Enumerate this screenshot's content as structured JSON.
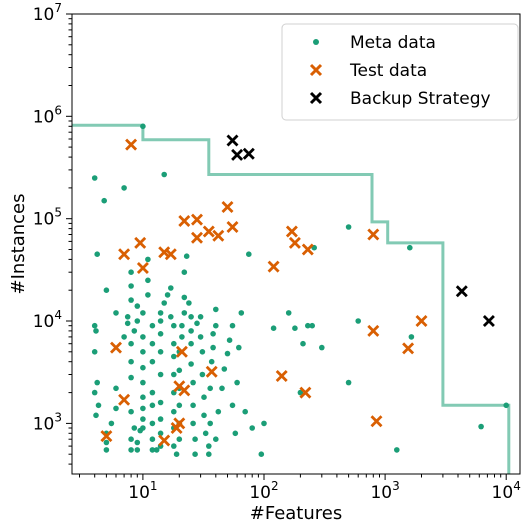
{
  "chart_data": {
    "type": "scatter",
    "xlabel": "#Features",
    "ylabel": "#Instances",
    "xscale": "log",
    "yscale": "log",
    "xlim": [
      2.6,
      13000
    ],
    "ylim": [
      320,
      10000000
    ],
    "x_ticks": [
      {
        "value": 10,
        "base": "10",
        "exp": "1"
      },
      {
        "value": 100,
        "base": "10",
        "exp": "2"
      },
      {
        "value": 1000,
        "base": "10",
        "exp": "3"
      },
      {
        "value": 10000,
        "base": "10",
        "exp": "4"
      }
    ],
    "y_ticks": [
      {
        "value": 1000,
        "base": "10",
        "exp": "3"
      },
      {
        "value": 10000,
        "base": "10",
        "exp": "4"
      },
      {
        "value": 100000,
        "base": "10",
        "exp": "5"
      },
      {
        "value": 1000000,
        "base": "10",
        "exp": "6"
      },
      {
        "value": 10000000,
        "base": "10",
        "exp": "7"
      }
    ],
    "grid": false,
    "legend_position": "top-right",
    "colors": {
      "meta": "#1b9e77",
      "test": "#d95f02",
      "backup": "#000000",
      "frontier": "#1b9e77"
    },
    "frontier": [
      [
        2.6,
        820000
      ],
      [
        10,
        820000
      ],
      [
        10,
        590000
      ],
      [
        35,
        590000
      ],
      [
        35,
        270000
      ],
      [
        780,
        270000
      ],
      [
        780,
        93000
      ],
      [
        1050,
        93000
      ],
      [
        1050,
        58000
      ],
      [
        3000,
        58000
      ],
      [
        3000,
        1500
      ],
      [
        10500,
        1500
      ],
      [
        10500,
        320
      ]
    ],
    "series": [
      {
        "name": "Meta data",
        "marker": "dot",
        "points": [
          [
            4,
            250000
          ],
          [
            4.8,
            150000
          ],
          [
            7,
            200000
          ],
          [
            4.2,
            45000
          ],
          [
            5,
            20000
          ],
          [
            6,
            12000
          ],
          [
            4,
            9000
          ],
          [
            4.1,
            8000
          ],
          [
            4,
            5000
          ],
          [
            4.2,
            2500
          ],
          [
            4,
            2000
          ],
          [
            4.3,
            1500
          ],
          [
            4.1,
            1200
          ],
          [
            5,
            800
          ],
          [
            5,
            650
          ],
          [
            5,
            550
          ],
          [
            5.5,
            1000
          ],
          [
            6,
            1400
          ],
          [
            6,
            2200
          ],
          [
            7,
            7000
          ],
          [
            7.5,
            9500
          ],
          [
            7.5,
            11000
          ],
          [
            8,
            16000
          ],
          [
            8,
            22000
          ],
          [
            8,
            30000
          ],
          [
            9,
            14000
          ],
          [
            9,
            10000
          ],
          [
            8.5,
            8000
          ],
          [
            8,
            6000
          ],
          [
            8,
            4000
          ],
          [
            8,
            2800
          ],
          [
            8,
            1300
          ],
          [
            8.5,
            900
          ],
          [
            8,
            700
          ],
          [
            8,
            550
          ],
          [
            9,
            550
          ],
          [
            9,
            650
          ],
          [
            9.5,
            850
          ],
          [
            10,
            900
          ],
          [
            10,
            1100
          ],
          [
            10,
            1400
          ],
          [
            10,
            1800
          ],
          [
            10,
            2500
          ],
          [
            10,
            3500
          ],
          [
            10,
            5000
          ],
          [
            10,
            7000
          ],
          [
            10,
            12000
          ],
          [
            11,
            18000
          ],
          [
            11,
            25000
          ],
          [
            11,
            40000
          ],
          [
            10,
            800000
          ],
          [
            15,
            270000
          ],
          [
            12,
            9000
          ],
          [
            12,
            6000
          ],
          [
            12,
            4000
          ],
          [
            12,
            2000
          ],
          [
            12,
            1500
          ],
          [
            12,
            1000
          ],
          [
            12,
            700
          ],
          [
            12,
            550
          ],
          [
            13,
            550
          ],
          [
            14,
            600
          ],
          [
            14,
            800
          ],
          [
            14,
            1100
          ],
          [
            14,
            1600
          ],
          [
            14,
            3000
          ],
          [
            14,
            5000
          ],
          [
            14,
            7500
          ],
          [
            14,
            10000
          ],
          [
            14,
            12000
          ],
          [
            15,
            15000
          ],
          [
            16,
            18000
          ],
          [
            17,
            21000
          ],
          [
            17,
            11000
          ],
          [
            18,
            9000
          ],
          [
            18,
            6000
          ],
          [
            18,
            4500
          ],
          [
            18,
            3000
          ],
          [
            18,
            2000
          ],
          [
            18,
            1300
          ],
          [
            18,
            900
          ],
          [
            18,
            600
          ],
          [
            19,
            500
          ],
          [
            20,
            700
          ],
          [
            20,
            1000
          ],
          [
            20,
            1500
          ],
          [
            20,
            2200
          ],
          [
            20,
            3300
          ],
          [
            20,
            5000
          ],
          [
            21,
            7000
          ],
          [
            21,
            9000
          ],
          [
            22,
            12000
          ],
          [
            22,
            17000
          ],
          [
            22,
            30000
          ],
          [
            23,
            43000
          ],
          [
            24,
            15000
          ],
          [
            25,
            11000
          ],
          [
            25,
            8000
          ],
          [
            25,
            6000
          ],
          [
            25,
            3800
          ],
          [
            26,
            2500
          ],
          [
            26,
            1500
          ],
          [
            26,
            1000
          ],
          [
            27,
            700
          ],
          [
            27,
            500
          ],
          [
            28,
            9500
          ],
          [
            30,
            11000
          ],
          [
            30,
            7000
          ],
          [
            31,
            5000
          ],
          [
            31,
            3000
          ],
          [
            32,
            1800
          ],
          [
            32,
            1200
          ],
          [
            33,
            800
          ],
          [
            35,
            600
          ],
          [
            35,
            500
          ],
          [
            36,
            1000
          ],
          [
            36,
            2200
          ],
          [
            37,
            4000
          ],
          [
            38,
            5500
          ],
          [
            38,
            7500
          ],
          [
            40,
            9000
          ],
          [
            40,
            13000
          ],
          [
            40,
            700
          ],
          [
            42,
            1300
          ],
          [
            45,
            2200
          ],
          [
            47,
            3400
          ],
          [
            50,
            4800
          ],
          [
            52,
            6500
          ],
          [
            55,
            9000
          ],
          [
            55,
            1500
          ],
          [
            58,
            800
          ],
          [
            60,
            2500
          ],
          [
            62,
            5500
          ],
          [
            65,
            12000
          ],
          [
            70,
            1300
          ],
          [
            75,
            45000
          ],
          [
            80,
            900
          ],
          [
            95,
            500
          ],
          [
            100,
            1000
          ],
          [
            120,
            8500
          ],
          [
            160,
            12000
          ],
          [
            180,
            8500
          ],
          [
            200,
            2000
          ],
          [
            210,
            6000
          ],
          [
            230,
            9000
          ],
          [
            250,
            9000
          ],
          [
            260,
            52000
          ],
          [
            300,
            5500
          ],
          [
            500,
            2500
          ],
          [
            500,
            83000
          ],
          [
            600,
            10000
          ],
          [
            1250,
            550
          ],
          [
            1600,
            52000
          ],
          [
            1650,
            7000
          ],
          [
            6200,
            930
          ],
          [
            10000,
            1500
          ]
        ]
      },
      {
        "name": "Test data",
        "marker": "x",
        "points": [
          [
            8,
            530000
          ],
          [
            7,
            45000
          ],
          [
            9.5,
            58000
          ],
          [
            10,
            33000
          ],
          [
            15,
            47000
          ],
          [
            17,
            45000
          ],
          [
            22,
            95000
          ],
          [
            28,
            98000
          ],
          [
            28,
            65000
          ],
          [
            35,
            75000
          ],
          [
            42,
            68000
          ],
          [
            50,
            130000
          ],
          [
            55,
            83000
          ],
          [
            6,
            5500
          ],
          [
            7,
            1700
          ],
          [
            5,
            750
          ],
          [
            15,
            680
          ],
          [
            19,
            900
          ],
          [
            20,
            1000
          ],
          [
            20,
            2300
          ],
          [
            21,
            5000
          ],
          [
            22,
            2100
          ],
          [
            37,
            3200
          ],
          [
            120,
            34000
          ],
          [
            170,
            75000
          ],
          [
            180,
            58000
          ],
          [
            230,
            50000
          ],
          [
            140,
            2900
          ],
          [
            220,
            2000
          ],
          [
            800,
            70000
          ],
          [
            800,
            8000
          ],
          [
            850,
            1050
          ],
          [
            1550,
            5400
          ],
          [
            2000,
            10000
          ]
        ]
      },
      {
        "name": "Backup Strategy",
        "marker": "x",
        "points": [
          [
            55,
            580000
          ],
          [
            60,
            420000
          ],
          [
            75,
            430000
          ],
          [
            4300,
            19500
          ],
          [
            7200,
            10000
          ]
        ]
      }
    ]
  }
}
